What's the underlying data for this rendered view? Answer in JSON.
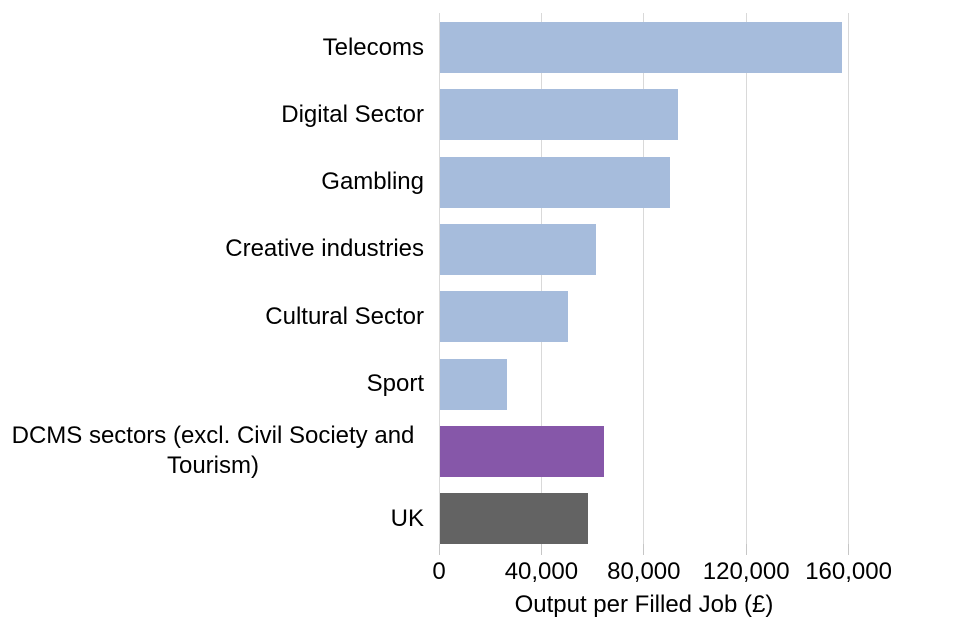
{
  "chart_data": {
    "type": "bar",
    "orientation": "horizontal",
    "title": "",
    "xlabel": "Output per Filled Job (£)",
    "ylabel": "",
    "categories": [
      "Telecoms",
      "Digital Sector",
      "Gambling",
      "Creative industries",
      "Cultural Sector",
      "Sport",
      "DCMS sectors (excl. Civil Society and Tourism)",
      "UK"
    ],
    "values": [
      157000,
      93000,
      90000,
      61000,
      50000,
      26000,
      64000,
      58000
    ],
    "bar_colors": [
      "#a6bcdc",
      "#a6bcdc",
      "#a6bcdc",
      "#a6bcdc",
      "#a6bcdc",
      "#a6bcdc",
      "#8657a9",
      "#636363"
    ],
    "xlim": [
      0,
      160000
    ],
    "xticks": [
      0,
      40000,
      80000,
      120000,
      160000
    ],
    "xtick_labels": [
      "0",
      "40,000",
      "80,000",
      "120,000",
      "160,000"
    ],
    "grid": true,
    "legend": false
  },
  "colors": {
    "default_bar": "#a6bcdc",
    "highlight_bar": "#8657a9",
    "uk_bar": "#636363",
    "gridline": "#d9d9d9",
    "text": "#000000"
  }
}
